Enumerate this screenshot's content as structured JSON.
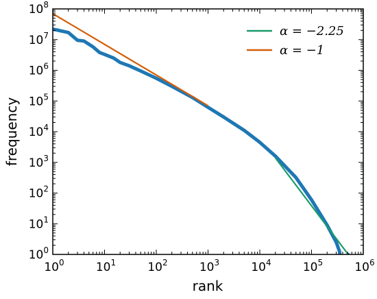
{
  "chart_data": {
    "type": "line",
    "xlabel": "rank",
    "ylabel": "frequency",
    "xscale": "log",
    "yscale": "log",
    "xlim": [
      1,
      1000000
    ],
    "ylim": [
      1,
      100000000
    ],
    "x_ticks": [
      {
        "base": "10",
        "exp": "0"
      },
      {
        "base": "10",
        "exp": "1"
      },
      {
        "base": "10",
        "exp": "2"
      },
      {
        "base": "10",
        "exp": "3"
      },
      {
        "base": "10",
        "exp": "4"
      },
      {
        "base": "10",
        "exp": "5"
      },
      {
        "base": "10",
        "exp": "6"
      }
    ],
    "y_ticks": [
      {
        "base": "10",
        "exp": "0"
      },
      {
        "base": "10",
        "exp": "1"
      },
      {
        "base": "10",
        "exp": "2"
      },
      {
        "base": "10",
        "exp": "3"
      },
      {
        "base": "10",
        "exp": "4"
      },
      {
        "base": "10",
        "exp": "5"
      },
      {
        "base": "10",
        "exp": "6"
      },
      {
        "base": "10",
        "exp": "7"
      },
      {
        "base": "10",
        "exp": "8"
      }
    ],
    "legend_position": "top-right",
    "series": [
      {
        "color": "#1f77b4",
        "points": [
          [
            1,
            22000000
          ],
          [
            2,
            17000000
          ],
          [
            3,
            9500000
          ],
          [
            4,
            9000000
          ],
          [
            6,
            5800000
          ],
          [
            8,
            3800000
          ],
          [
            10,
            3300000
          ],
          [
            15,
            2500000
          ],
          [
            20,
            1800000
          ],
          [
            30,
            1400000
          ],
          [
            50,
            950000
          ],
          [
            100,
            550000
          ],
          [
            200,
            300000
          ],
          [
            500,
            130000
          ],
          [
            1000,
            62000
          ],
          [
            2000,
            30000
          ],
          [
            5000,
            11000
          ],
          [
            10000,
            4500
          ],
          [
            20000,
            1600
          ],
          [
            50000,
            320
          ],
          [
            100000,
            60
          ],
          [
            200000,
            9
          ],
          [
            300000,
            2.5
          ],
          [
            350000,
            1.2
          ],
          [
            350000,
            0.8
          ],
          [
            400000,
            0.8
          ],
          [
            550000,
            1
          ]
        ]
      },
      {
        "name": "α = −2.25",
        "color": "#1a9b6c",
        "points": [
          [
            20000,
            1400
          ],
          [
            550000,
            0.85
          ]
        ]
      },
      {
        "name": "α = −1",
        "color": "#d35f0a",
        "points": [
          [
            1,
            70000000
          ],
          [
            1000,
            70000
          ]
        ]
      }
    ]
  }
}
